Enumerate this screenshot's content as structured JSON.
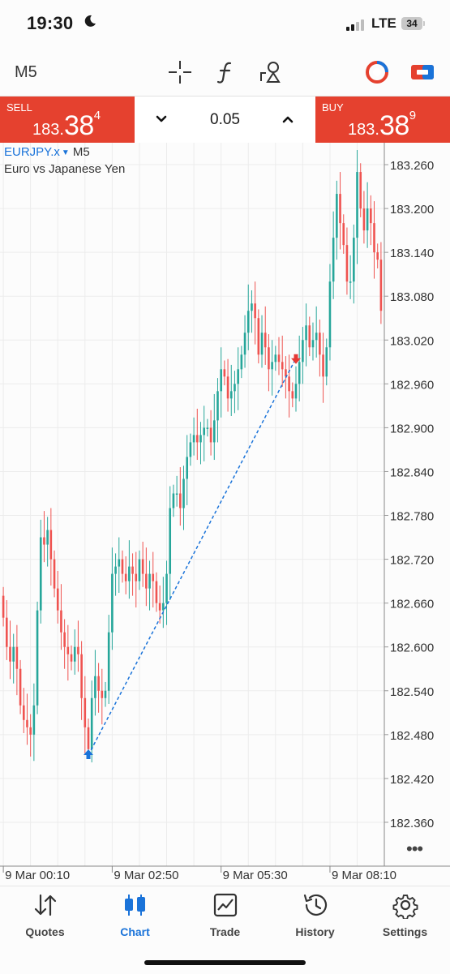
{
  "status_bar": {
    "time": "19:30",
    "network": "LTE",
    "battery": "34"
  },
  "toolbar": {
    "timeframe": "M5"
  },
  "trade": {
    "sell_label": "SELL",
    "sell_price_small": "183.",
    "sell_price_big": "38",
    "sell_price_sup": "4",
    "buy_label": "BUY",
    "buy_price_small": "183.",
    "buy_price_big": "38",
    "buy_price_sup": "9",
    "lot": "0.05"
  },
  "chart_header": {
    "symbol": "EURJPY.x",
    "timeframe": "M5",
    "description": "Euro vs Japanese Yen"
  },
  "chart_data": {
    "type": "candlestick",
    "symbol": "EURJPY.x",
    "timeframe": "M5",
    "ylim": [
      182.3,
      183.29
    ],
    "y_ticks": [
      "183.260",
      "183.200",
      "183.140",
      "183.080",
      "183.020",
      "182.960",
      "182.900",
      "182.840",
      "182.780",
      "182.720",
      "182.660",
      "182.600",
      "182.540",
      "182.480",
      "182.420",
      "182.360"
    ],
    "x_ticks": [
      "9 Mar 00:10",
      "9 Mar 02:50",
      "9 Mar 05:30",
      "9 Mar 08:10"
    ],
    "x_tick_indices": [
      0,
      32,
      64,
      96
    ],
    "up_color": "#26a69a",
    "down_color": "#ef5350",
    "grid": true,
    "closes": [
      182.64,
      182.6,
      182.58,
      182.6,
      182.57,
      182.52,
      182.5,
      182.49,
      182.48,
      182.52,
      182.65,
      182.75,
      182.74,
      182.76,
      182.72,
      182.68,
      182.65,
      182.62,
      182.6,
      182.59,
      182.58,
      182.6,
      182.59,
      182.53,
      182.49,
      182.46,
      182.53,
      182.56,
      182.54,
      182.53,
      182.54,
      182.62,
      182.7,
      182.71,
      182.72,
      182.7,
      182.69,
      182.71,
      182.7,
      182.69,
      182.72,
      182.7,
      182.68,
      182.7,
      182.69,
      182.66,
      182.65,
      182.66,
      182.7,
      182.79,
      182.81,
      182.81,
      182.79,
      182.83,
      182.86,
      182.88,
      182.89,
      182.88,
      182.89,
      182.9,
      182.9,
      182.88,
      182.91,
      182.95,
      182.98,
      182.97,
      182.94,
      182.95,
      182.96,
      182.98,
      183.0,
      183.03,
      183.06,
      183.07,
      183.05,
      183.0,
      183.03,
      183.01,
      182.98,
      182.99,
      183.0,
      182.99,
      182.98,
      182.97,
      182.95,
      182.94,
      182.96,
      182.99,
      183.02,
      183.04,
      183.01,
      183.02,
      183.03,
      183.0,
      182.97,
      183.01,
      183.1,
      183.16,
      183.22,
      183.18,
      183.15,
      183.1,
      183.1,
      183.16,
      183.25,
      183.2,
      183.17,
      183.2,
      183.18,
      183.14,
      183.13,
      183.06
    ]
  },
  "trade_markers": {
    "entry_label": "buy",
    "exit_label": "sell"
  },
  "nav": {
    "items": [
      {
        "label": "Quotes"
      },
      {
        "label": "Chart"
      },
      {
        "label": "Trade"
      },
      {
        "label": "History"
      },
      {
        "label": "Settings"
      }
    ]
  }
}
